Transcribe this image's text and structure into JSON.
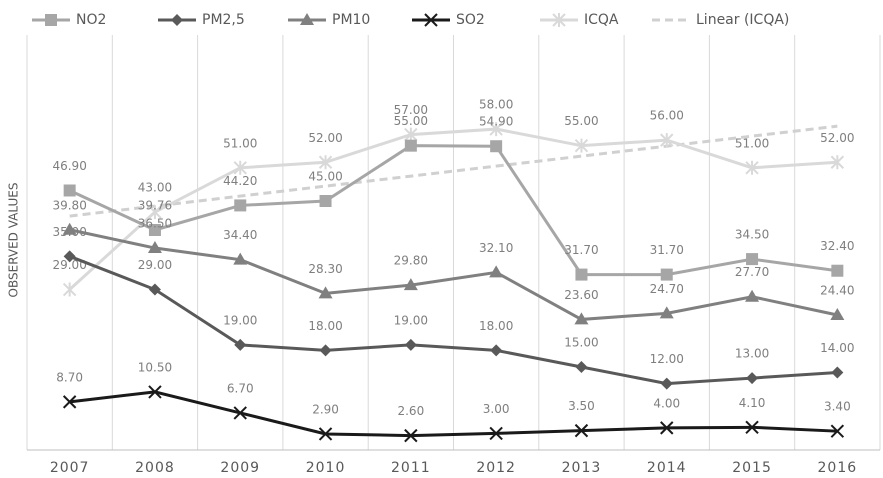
{
  "chart_data": {
    "type": "line",
    "y_label": "OBSERVED VALUES",
    "categories": [
      "2007",
      "2008",
      "2009",
      "2010",
      "2011",
      "2012",
      "2013",
      "2014",
      "2015",
      "2016"
    ],
    "series": [
      {
        "name": "NO2",
        "color": "#a6a6a6",
        "marker": "square",
        "values": [
          46.9,
          39.76,
          44.2,
          45.0,
          55.0,
          54.9,
          31.7,
          31.7,
          34.5,
          32.4
        ],
        "value_labels": [
          "46.90",
          "39.76",
          "44.20",
          "45.00",
          "55.00",
          "54.90",
          "31.70",
          "31.70",
          "34.50",
          "32.40"
        ]
      },
      {
        "name": "PM2,5",
        "color": "#595959",
        "marker": "diamond",
        "values": [
          35.0,
          29.0,
          19.0,
          18.0,
          19.0,
          18.0,
          15.0,
          12.0,
          13.0,
          14.0
        ],
        "value_labels": [
          "35.00",
          "29.00",
          "19.00",
          "18.00",
          "19.00",
          "18.00",
          "15.00",
          "12.00",
          "13.00",
          "14.00"
        ]
      },
      {
        "name": "PM10",
        "color": "#808080",
        "marker": "triangle",
        "values": [
          39.8,
          36.5,
          34.4,
          28.3,
          29.8,
          32.1,
          23.6,
          24.7,
          27.7,
          24.4
        ],
        "value_labels": [
          "39.80",
          "36.50",
          "34.40",
          "28.30",
          "29.80",
          "32.10",
          "23.60",
          "24.70",
          "27.70",
          "24.40"
        ]
      },
      {
        "name": "SO2",
        "color": "#1a1a1a",
        "marker": "cross",
        "values": [
          8.7,
          10.5,
          6.7,
          2.9,
          2.6,
          3.0,
          3.5,
          4.0,
          4.1,
          3.4
        ],
        "value_labels": [
          "8.70",
          "10.50",
          "6.70",
          "2.90",
          "2.60",
          "3.00",
          "3.50",
          "4.00",
          "4.10",
          "3.40"
        ]
      },
      {
        "name": "ICQA",
        "color": "#d9d9d9",
        "marker": "star",
        "values": [
          29.0,
          43.0,
          51.0,
          52.0,
          57.0,
          58.0,
          55.0,
          56.0,
          51.0,
          52.0
        ],
        "value_labels": [
          "29.00",
          "43.00",
          "51.00",
          "52.00",
          "57.00",
          "58.00",
          "55.00",
          "56.00",
          "51.00",
          "52.00"
        ]
      }
    ],
    "trendline": {
      "name": "Linear (ICQA)",
      "series": 4,
      "color": "#d0d0d0"
    },
    "ylim": [
      0,
      75
    ],
    "legend": "top",
    "grid": true
  }
}
